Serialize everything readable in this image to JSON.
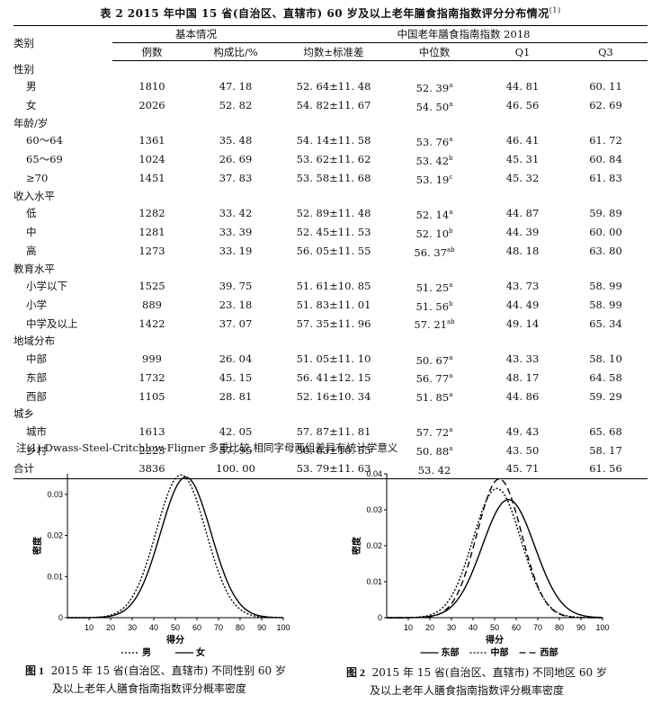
{
  "table": {
    "caption_label": "表 2",
    "caption_text": "2015 年中国 15 省(自治区、直辖市) 60 岁及以上老年膳食指南指数评分分布情况",
    "caption_mark": "(1)",
    "header": {
      "category": "类别",
      "group_basic": "基本情况",
      "group_index": "中国老年膳食指南指数 2018",
      "cols": [
        "例数",
        "构成比/%",
        "均数±标准差",
        "中位数",
        "Q1",
        "Q3"
      ]
    },
    "rows": [
      {
        "label": "性别",
        "section": true
      },
      {
        "label": "男",
        "n": "1810",
        "pct": "47. 18",
        "mean": "52. 64±11. 48",
        "median": "52. 39",
        "sup": "a",
        "q1": "44. 81",
        "q3": "60. 11"
      },
      {
        "label": "女",
        "n": "2026",
        "pct": "52. 82",
        "mean": "54. 82±11. 67",
        "median": "54. 50",
        "sup": "a",
        "q1": "46. 56",
        "q3": "62. 69"
      },
      {
        "label": "年龄/岁",
        "section": true
      },
      {
        "label": "60～64",
        "n": "1361",
        "pct": "35. 48",
        "mean": "54. 14±11. 58",
        "median": "53. 76",
        "sup": "a",
        "q1": "46. 41",
        "q3": "61. 72"
      },
      {
        "label": "65～69",
        "n": "1024",
        "pct": "26. 69",
        "mean": "53. 62±11. 62",
        "median": "53. 42",
        "sup": "b",
        "q1": "45. 31",
        "q3": "60. 84"
      },
      {
        "label": "≥70",
        "n": "1451",
        "pct": "37. 83",
        "mean": "53. 58±11. 68",
        "median": "53. 19",
        "sup": "c",
        "q1": "45. 32",
        "q3": "61. 83"
      },
      {
        "label": "收入水平",
        "section": true
      },
      {
        "label": "低",
        "n": "1282",
        "pct": "33. 42",
        "mean": "52. 89±11. 48",
        "median": "52. 14",
        "sup": "a",
        "q1": "44. 87",
        "q3": "59. 89"
      },
      {
        "label": "中",
        "n": "1281",
        "pct": "33. 39",
        "mean": "52. 45±11. 53",
        "median": "52. 10",
        "sup": "b",
        "q1": "44. 39",
        "q3": "60. 00"
      },
      {
        "label": "高",
        "n": "1273",
        "pct": "33. 19",
        "mean": "56. 05±11. 55",
        "median": "56. 37",
        "sup": "ab",
        "q1": "48. 18",
        "q3": "63. 80"
      },
      {
        "label": "教育水平",
        "section": true
      },
      {
        "label": "小学以下",
        "n": "1525",
        "pct": "39. 75",
        "mean": "51. 61±10. 85",
        "median": "51. 25",
        "sup": "a",
        "q1": "43. 73",
        "q3": "58. 99"
      },
      {
        "label": "小学",
        "n": "889",
        "pct": "23. 18",
        "mean": "51. 83±11. 01",
        "median": "51. 56",
        "sup": "b",
        "q1": "44. 49",
        "q3": "58. 99"
      },
      {
        "label": "中学及以上",
        "n": "1422",
        "pct": "37. 07",
        "mean": "57. 35±11. 96",
        "median": "57. 21",
        "sup": "ab",
        "q1": "49. 14",
        "q3": "65. 34"
      },
      {
        "label": "地域分布",
        "section": true
      },
      {
        "label": "中部",
        "n": "999",
        "pct": "26. 04",
        "mean": "51. 05±11. 10",
        "median": "50. 67",
        "sup": "a",
        "q1": "43. 33",
        "q3": "58. 10"
      },
      {
        "label": "东部",
        "n": "1732",
        "pct": "45. 15",
        "mean": "56. 41±12. 15",
        "median": "56. 77",
        "sup": "a",
        "q1": "48. 17",
        "q3": "64. 58"
      },
      {
        "label": "西部",
        "n": "1105",
        "pct": "28. 81",
        "mean": "52. 16±10. 34",
        "median": "51. 85",
        "sup": "a",
        "q1": "44. 86",
        "q3": "59. 29"
      },
      {
        "label": "城乡",
        "section": true
      },
      {
        "label": "城市",
        "n": "1613",
        "pct": "42. 05",
        "mean": "57. 87±11. 81",
        "median": "57. 72",
        "sup": "a",
        "q1": "49. 43",
        "q3": "65. 68"
      },
      {
        "label": "乡村",
        "n": "2223",
        "pct": "57. 95",
        "mean": "50. 83±10. 55",
        "median": "50. 88",
        "sup": "a",
        "q1": "43. 50",
        "q3": "58. 17"
      },
      {
        "label": "合计",
        "total": true,
        "n": "3836",
        "pct": "100. 00",
        "mean": "53. 79±11. 63",
        "median": "53. 42",
        "sup": "",
        "q1": "45. 71",
        "q3": "61. 56"
      }
    ],
    "note": "注(1):Dwass-Steel-Critchlow-Fligner 多重比较,相同字母两组差异有统计学意义"
  },
  "figures": {
    "fig1": {
      "caption_label": "图 1",
      "caption_line1": "2015 年 15 省(自治区、直辖市) 不同性别 60 岁",
      "caption_line2": "及以上老年人膳食指南指数评分概率密度"
    },
    "fig2": {
      "caption_label": "图 2",
      "caption_line1": "2015 年 15 省(自治区、直辖市) 不同地区 60 岁",
      "caption_line2": "及以上老年人膳食指南指数评分概率密度"
    }
  },
  "chart_data": [
    {
      "type": "line",
      "xlabel": "得分",
      "ylabel": "密度",
      "xlim": [
        0,
        100
      ],
      "ylim": [
        0,
        0.035
      ],
      "xticks": [
        "10",
        "20",
        "30",
        "40",
        "50",
        "60",
        "70",
        "80",
        "90",
        "100"
      ],
      "yticks": [
        "0",
        "0.01",
        "0.02",
        "0.03"
      ],
      "yticks_values": [
        0,
        0.01,
        0.02,
        0.03
      ],
      "legend": "bottom",
      "series": [
        {
          "name": "男",
          "style": "dotted",
          "mean": 52.64,
          "sd": 11.48
        },
        {
          "name": "女",
          "style": "solid",
          "mean": 54.82,
          "sd": 11.67
        }
      ]
    },
    {
      "type": "line",
      "xlabel": "得分",
      "ylabel": "密度",
      "xlim": [
        0,
        100
      ],
      "ylim": [
        0,
        0.04
      ],
      "xticks": [
        "10",
        "20",
        "30",
        "40",
        "50",
        "60",
        "70",
        "80",
        "90",
        "100"
      ],
      "yticks": [
        "0",
        "0.01",
        "0.02",
        "0.03",
        "0.04"
      ],
      "yticks_values": [
        0,
        0.01,
        0.02,
        0.03,
        0.04
      ],
      "legend": "bottom",
      "series": [
        {
          "name": "东部",
          "style": "solid",
          "mean": 56.41,
          "sd": 12.15
        },
        {
          "name": "中部",
          "style": "dotted",
          "mean": 51.05,
          "sd": 11.1
        },
        {
          "name": "西部",
          "style": "dashed",
          "mean": 52.16,
          "sd": 10.34
        }
      ]
    }
  ]
}
